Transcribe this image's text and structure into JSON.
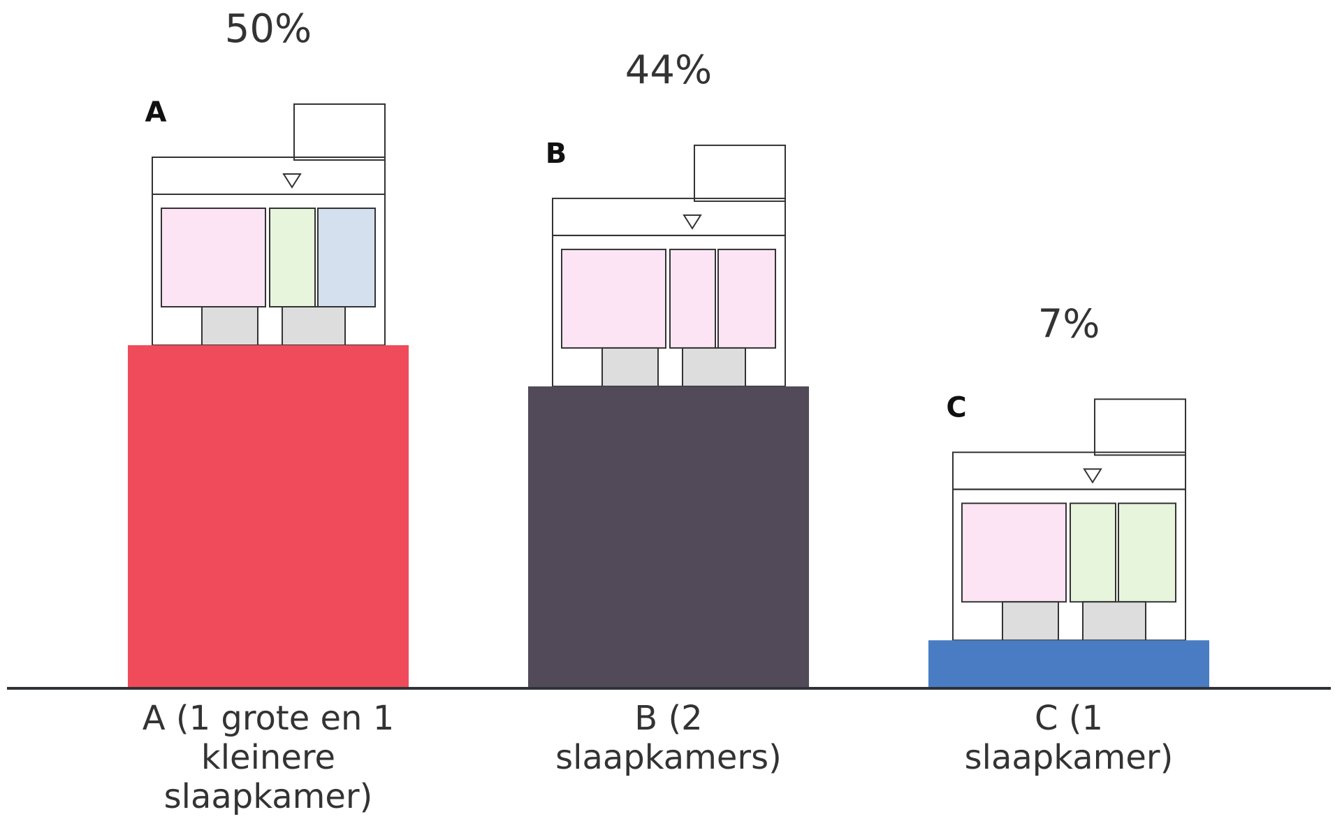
{
  "chart_data": {
    "type": "bar",
    "categories": [
      "A (1 grote en 1 kleinere slaapkamer)",
      "B (2 slaapkamers)",
      "C (1 slaapkamer)"
    ],
    "values": [
      50,
      44,
      7
    ],
    "value_labels": [
      "50%",
      "44%",
      "7%"
    ],
    "colors": [
      "#ef4b5a",
      "#524a58",
      "#4a7cc4"
    ],
    "plan_labels": [
      "A",
      "B",
      "C"
    ]
  }
}
